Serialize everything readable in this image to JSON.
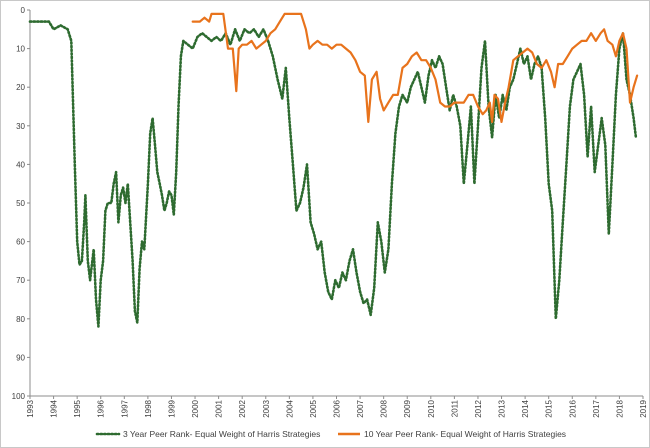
{
  "chart_data": {
    "type": "line",
    "title": "",
    "xlabel": "",
    "ylabel": "",
    "xlim": [
      1993,
      2019
    ],
    "ylim": [
      0,
      100
    ],
    "y_inverted": true,
    "grid": false,
    "legend_position": "bottom",
    "x_ticks": [
      "1993",
      "1994",
      "1995",
      "1996",
      "1997",
      "1998",
      "1999",
      "2000",
      "2001",
      "2002",
      "2003",
      "2004",
      "2005",
      "2006",
      "2007",
      "2008",
      "2009",
      "2010",
      "2011",
      "2012",
      "2013",
      "2014",
      "2015",
      "2016",
      "2017",
      "2018",
      "2019"
    ],
    "y_ticks": [
      "0",
      "10",
      "20",
      "30",
      "40",
      "50",
      "60",
      "70",
      "80",
      "90",
      "100"
    ],
    "series": [
      {
        "name": "3 Year Peer Rank- Equal Weight of Harris Strategies",
        "color": "#2e6b30",
        "style": "dotted",
        "points": [
          [
            1993.0,
            3
          ],
          [
            1993.5,
            3
          ],
          [
            1993.8,
            3
          ],
          [
            1994.0,
            5
          ],
          [
            1994.3,
            4
          ],
          [
            1994.6,
            5
          ],
          [
            1994.75,
            8
          ],
          [
            1994.9,
            40
          ],
          [
            1995.0,
            60
          ],
          [
            1995.1,
            66
          ],
          [
            1995.2,
            65
          ],
          [
            1995.3,
            55
          ],
          [
            1995.35,
            48
          ],
          [
            1995.45,
            65
          ],
          [
            1995.55,
            70
          ],
          [
            1995.7,
            62
          ],
          [
            1995.8,
            75
          ],
          [
            1995.9,
            82
          ],
          [
            1996.0,
            70
          ],
          [
            1996.1,
            65
          ],
          [
            1996.2,
            52
          ],
          [
            1996.3,
            50
          ],
          [
            1996.45,
            50
          ],
          [
            1996.55,
            45
          ],
          [
            1996.65,
            42
          ],
          [
            1996.75,
            55
          ],
          [
            1996.85,
            48
          ],
          [
            1996.95,
            46
          ],
          [
            1997.05,
            50
          ],
          [
            1997.15,
            45
          ],
          [
            1997.25,
            55
          ],
          [
            1997.35,
            65
          ],
          [
            1997.45,
            78
          ],
          [
            1997.55,
            81
          ],
          [
            1997.65,
            67
          ],
          [
            1997.75,
            60
          ],
          [
            1997.85,
            62
          ],
          [
            1998.0,
            45
          ],
          [
            1998.1,
            32
          ],
          [
            1998.2,
            28
          ],
          [
            1998.3,
            35
          ],
          [
            1998.4,
            42
          ],
          [
            1998.5,
            45
          ],
          [
            1998.6,
            48
          ],
          [
            1998.7,
            52
          ],
          [
            1998.8,
            50
          ],
          [
            1998.9,
            47
          ],
          [
            1999.0,
            48
          ],
          [
            1999.1,
            53
          ],
          [
            1999.2,
            42
          ],
          [
            1999.3,
            25
          ],
          [
            1999.4,
            12
          ],
          [
            1999.5,
            8
          ],
          [
            1999.7,
            9
          ],
          [
            1999.9,
            10
          ],
          [
            2000.1,
            7
          ],
          [
            2000.3,
            6
          ],
          [
            2000.5,
            7
          ],
          [
            2000.7,
            8
          ],
          [
            2000.9,
            7
          ],
          [
            2001.1,
            8
          ],
          [
            2001.3,
            6
          ],
          [
            2001.5,
            9
          ],
          [
            2001.7,
            5
          ],
          [
            2001.9,
            8
          ],
          [
            2002.1,
            5
          ],
          [
            2002.3,
            6
          ],
          [
            2002.5,
            5
          ],
          [
            2002.7,
            7
          ],
          [
            2002.9,
            5
          ],
          [
            2003.1,
            8
          ],
          [
            2003.3,
            12
          ],
          [
            2003.5,
            18
          ],
          [
            2003.7,
            23
          ],
          [
            2003.85,
            15
          ],
          [
            2004.0,
            28
          ],
          [
            2004.15,
            40
          ],
          [
            2004.3,
            52
          ],
          [
            2004.45,
            50
          ],
          [
            2004.6,
            46
          ],
          [
            2004.75,
            40
          ],
          [
            2004.9,
            55
          ],
          [
            2005.05,
            58
          ],
          [
            2005.2,
            62
          ],
          [
            2005.35,
            60
          ],
          [
            2005.5,
            68
          ],
          [
            2005.65,
            73
          ],
          [
            2005.8,
            75
          ],
          [
            2005.95,
            70
          ],
          [
            2006.1,
            72
          ],
          [
            2006.25,
            68
          ],
          [
            2006.4,
            70
          ],
          [
            2006.55,
            65
          ],
          [
            2006.7,
            62
          ],
          [
            2006.85,
            68
          ],
          [
            2007.0,
            73
          ],
          [
            2007.15,
            76
          ],
          [
            2007.3,
            75
          ],
          [
            2007.45,
            79
          ],
          [
            2007.6,
            72
          ],
          [
            2007.75,
            55
          ],
          [
            2007.9,
            60
          ],
          [
            2008.05,
            68
          ],
          [
            2008.2,
            62
          ],
          [
            2008.35,
            45
          ],
          [
            2008.5,
            32
          ],
          [
            2008.65,
            25
          ],
          [
            2008.8,
            22
          ],
          [
            2009.0,
            24
          ],
          [
            2009.15,
            20
          ],
          [
            2009.3,
            18
          ],
          [
            2009.45,
            16
          ],
          [
            2009.6,
            20
          ],
          [
            2009.75,
            24
          ],
          [
            2009.9,
            17
          ],
          [
            2010.05,
            13
          ],
          [
            2010.2,
            15
          ],
          [
            2010.35,
            12
          ],
          [
            2010.5,
            14
          ],
          [
            2010.65,
            20
          ],
          [
            2010.8,
            26
          ],
          [
            2010.95,
            22
          ],
          [
            2011.1,
            25
          ],
          [
            2011.25,
            30
          ],
          [
            2011.4,
            45
          ],
          [
            2011.55,
            35
          ],
          [
            2011.7,
            25
          ],
          [
            2011.85,
            45
          ],
          [
            2012.0,
            30
          ],
          [
            2012.15,
            15
          ],
          [
            2012.3,
            8
          ],
          [
            2012.45,
            25
          ],
          [
            2012.6,
            33
          ],
          [
            2012.75,
            22
          ],
          [
            2012.9,
            28
          ],
          [
            2013.05,
            22
          ],
          [
            2013.2,
            26
          ],
          [
            2013.35,
            20
          ],
          [
            2013.5,
            18
          ],
          [
            2013.65,
            14
          ],
          [
            2013.8,
            10
          ],
          [
            2013.95,
            14
          ],
          [
            2014.1,
            12
          ],
          [
            2014.25,
            18
          ],
          [
            2014.4,
            14
          ],
          [
            2014.55,
            12
          ],
          [
            2014.7,
            15
          ],
          [
            2014.85,
            28
          ],
          [
            2015.0,
            45
          ],
          [
            2015.15,
            52
          ],
          [
            2015.3,
            80
          ],
          [
            2015.45,
            70
          ],
          [
            2015.6,
            55
          ],
          [
            2015.75,
            40
          ],
          [
            2015.9,
            25
          ],
          [
            2016.05,
            18
          ],
          [
            2016.2,
            16
          ],
          [
            2016.35,
            14
          ],
          [
            2016.5,
            22
          ],
          [
            2016.65,
            38
          ],
          [
            2016.8,
            25
          ],
          [
            2016.95,
            42
          ],
          [
            2017.1,
            35
          ],
          [
            2017.25,
            28
          ],
          [
            2017.4,
            35
          ],
          [
            2017.55,
            58
          ],
          [
            2017.7,
            40
          ],
          [
            2017.85,
            22
          ],
          [
            2018.0,
            10
          ],
          [
            2018.15,
            6
          ],
          [
            2018.3,
            18
          ],
          [
            2018.45,
            22
          ],
          [
            2018.6,
            28
          ],
          [
            2018.7,
            33
          ]
        ]
      },
      {
        "name": "10 Year Peer Rank- Equal Weight of Harris Strategies",
        "color": "#e8731c",
        "style": "solid",
        "points": [
          [
            1999.9,
            3
          ],
          [
            2000.2,
            3
          ],
          [
            2000.4,
            2
          ],
          [
            2000.6,
            3
          ],
          [
            2000.7,
            1
          ],
          [
            2001.0,
            1
          ],
          [
            2001.2,
            1
          ],
          [
            2001.4,
            10
          ],
          [
            2001.6,
            10
          ],
          [
            2001.75,
            21
          ],
          [
            2001.85,
            10
          ],
          [
            2002.0,
            9
          ],
          [
            2002.2,
            9
          ],
          [
            2002.4,
            8
          ],
          [
            2002.6,
            10
          ],
          [
            2002.8,
            9
          ],
          [
            2003.0,
            8
          ],
          [
            2003.2,
            6
          ],
          [
            2003.4,
            5
          ],
          [
            2003.6,
            3
          ],
          [
            2003.8,
            1
          ],
          [
            2004.0,
            1
          ],
          [
            2004.3,
            1
          ],
          [
            2004.5,
            1
          ],
          [
            2004.7,
            5
          ],
          [
            2004.85,
            10
          ],
          [
            2005.0,
            9
          ],
          [
            2005.2,
            8
          ],
          [
            2005.4,
            9
          ],
          [
            2005.6,
            9
          ],
          [
            2005.8,
            10
          ],
          [
            2006.0,
            9
          ],
          [
            2006.2,
            9
          ],
          [
            2006.4,
            10
          ],
          [
            2006.6,
            11
          ],
          [
            2006.8,
            13
          ],
          [
            2007.0,
            16
          ],
          [
            2007.2,
            17
          ],
          [
            2007.35,
            29
          ],
          [
            2007.5,
            18
          ],
          [
            2007.7,
            16
          ],
          [
            2007.85,
            23
          ],
          [
            2008.0,
            26
          ],
          [
            2008.2,
            24
          ],
          [
            2008.4,
            22
          ],
          [
            2008.6,
            22
          ],
          [
            2008.8,
            15
          ],
          [
            2009.0,
            14
          ],
          [
            2009.2,
            12
          ],
          [
            2009.4,
            11
          ],
          [
            2009.6,
            13
          ],
          [
            2009.8,
            13
          ],
          [
            2010.0,
            15
          ],
          [
            2010.2,
            18
          ],
          [
            2010.4,
            24
          ],
          [
            2010.6,
            25
          ],
          [
            2010.8,
            25
          ],
          [
            2011.0,
            24
          ],
          [
            2011.2,
            24
          ],
          [
            2011.4,
            24
          ],
          [
            2011.6,
            22
          ],
          [
            2011.8,
            22
          ],
          [
            2012.0,
            25
          ],
          [
            2012.2,
            27
          ],
          [
            2012.35,
            26
          ],
          [
            2012.5,
            24
          ],
          [
            2012.6,
            29
          ],
          [
            2012.7,
            22
          ],
          [
            2012.85,
            23
          ],
          [
            2013.0,
            29
          ],
          [
            2013.15,
            24
          ],
          [
            2013.3,
            20
          ],
          [
            2013.5,
            13
          ],
          [
            2013.7,
            12
          ],
          [
            2013.9,
            11
          ],
          [
            2014.1,
            10
          ],
          [
            2014.3,
            11
          ],
          [
            2014.5,
            14
          ],
          [
            2014.7,
            15
          ],
          [
            2014.9,
            13
          ],
          [
            2015.1,
            16
          ],
          [
            2015.25,
            20
          ],
          [
            2015.4,
            14
          ],
          [
            2015.6,
            14
          ],
          [
            2015.8,
            12
          ],
          [
            2016.0,
            10
          ],
          [
            2016.2,
            9
          ],
          [
            2016.4,
            8
          ],
          [
            2016.6,
            8
          ],
          [
            2016.8,
            6
          ],
          [
            2017.0,
            8
          ],
          [
            2017.2,
            6
          ],
          [
            2017.35,
            5
          ],
          [
            2017.5,
            8
          ],
          [
            2017.7,
            9
          ],
          [
            2017.85,
            12
          ],
          [
            2018.0,
            8
          ],
          [
            2018.15,
            6
          ],
          [
            2018.3,
            10
          ],
          [
            2018.45,
            24
          ],
          [
            2018.6,
            20
          ],
          [
            2018.75,
            17
          ]
        ]
      }
    ]
  }
}
